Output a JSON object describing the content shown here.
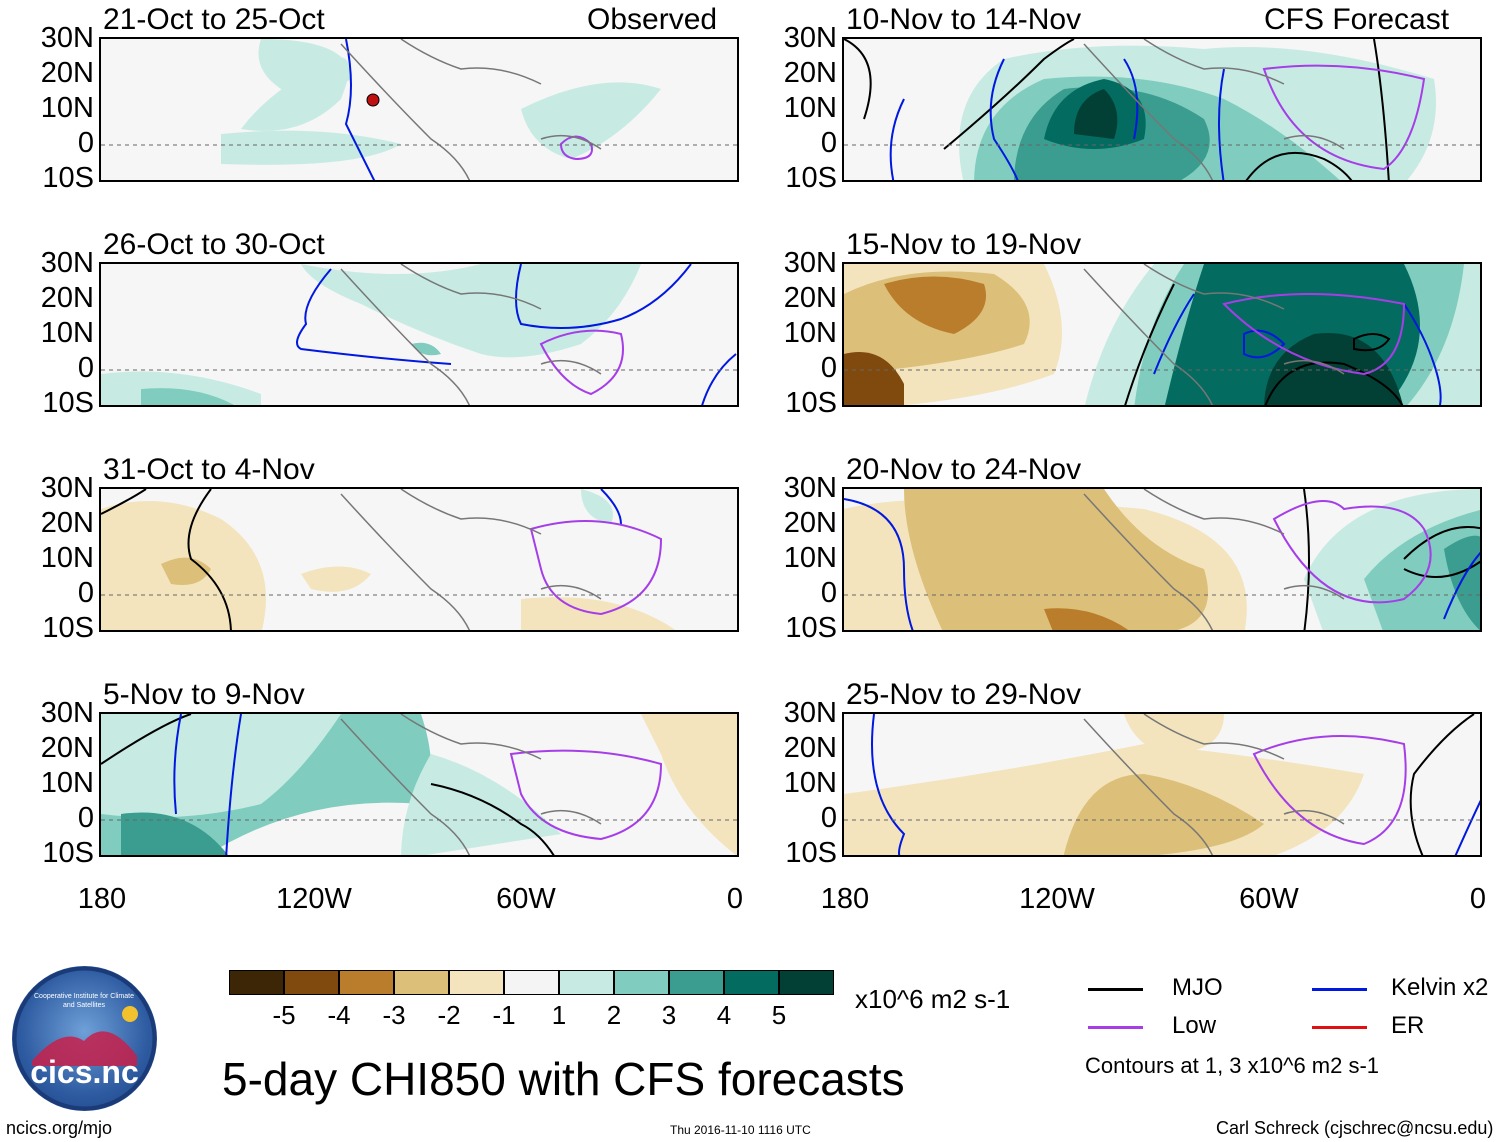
{
  "figure": {
    "title": "5-day CHI850 with CFS forecasts",
    "observed_label": "Observed",
    "forecast_label": "CFS Forecast"
  },
  "panels": [
    {
      "label": "21-Oct to 25-Oct",
      "type": "observed"
    },
    {
      "label": "26-Oct to 30-Oct",
      "type": "observed"
    },
    {
      "label": "31-Oct to 4-Nov",
      "type": "observed"
    },
    {
      "label": "5-Nov to 9-Nov",
      "type": "observed"
    },
    {
      "label": "10-Nov to 14-Nov",
      "type": "forecast"
    },
    {
      "label": "15-Nov to 19-Nov",
      "type": "forecast"
    },
    {
      "label": "20-Nov to 24-Nov",
      "type": "forecast"
    },
    {
      "label": "25-Nov to 29-Nov",
      "type": "forecast"
    }
  ],
  "axes": {
    "lat_labels": [
      "30N",
      "20N",
      "10N",
      "0",
      "10S"
    ],
    "lon_labels": [
      "180",
      "120W",
      "60W",
      "0"
    ]
  },
  "colorbar": {
    "labels": [
      "-5",
      "-4",
      "-3",
      "-2",
      "-1",
      "1",
      "2",
      "3",
      "4",
      "5"
    ],
    "colors": [
      "#3d2606",
      "#80490e",
      "#b97d2b",
      "#dcbf79",
      "#f3e4bd",
      "#f4f4f4",
      "#c7ebe3",
      "#80cdbf",
      "#3a9d8f",
      "#036b5f",
      "#023f35"
    ],
    "units": "x10^6 m2 s-1"
  },
  "legend": {
    "items": [
      {
        "label": "MJO",
        "color": "#000000"
      },
      {
        "label": "Kelvin x2",
        "color": "#0018e0"
      },
      {
        "label": "Low",
        "color": "#a63ee8"
      },
      {
        "label": "ER",
        "color": "#e01010"
      }
    ],
    "contour_note": "Contours at 1, 3 x10^6 m2 s-1"
  },
  "footer": {
    "left": "ncics.org/mjo",
    "center": "Thu 2016-11-10 1116 UTC",
    "right": "Carl Schreck (cjschrec@ncsu.edu)"
  },
  "logo": {
    "text": "cics.nc",
    "ring_text": "Cooperative Institute for Climate and Satellites"
  }
}
